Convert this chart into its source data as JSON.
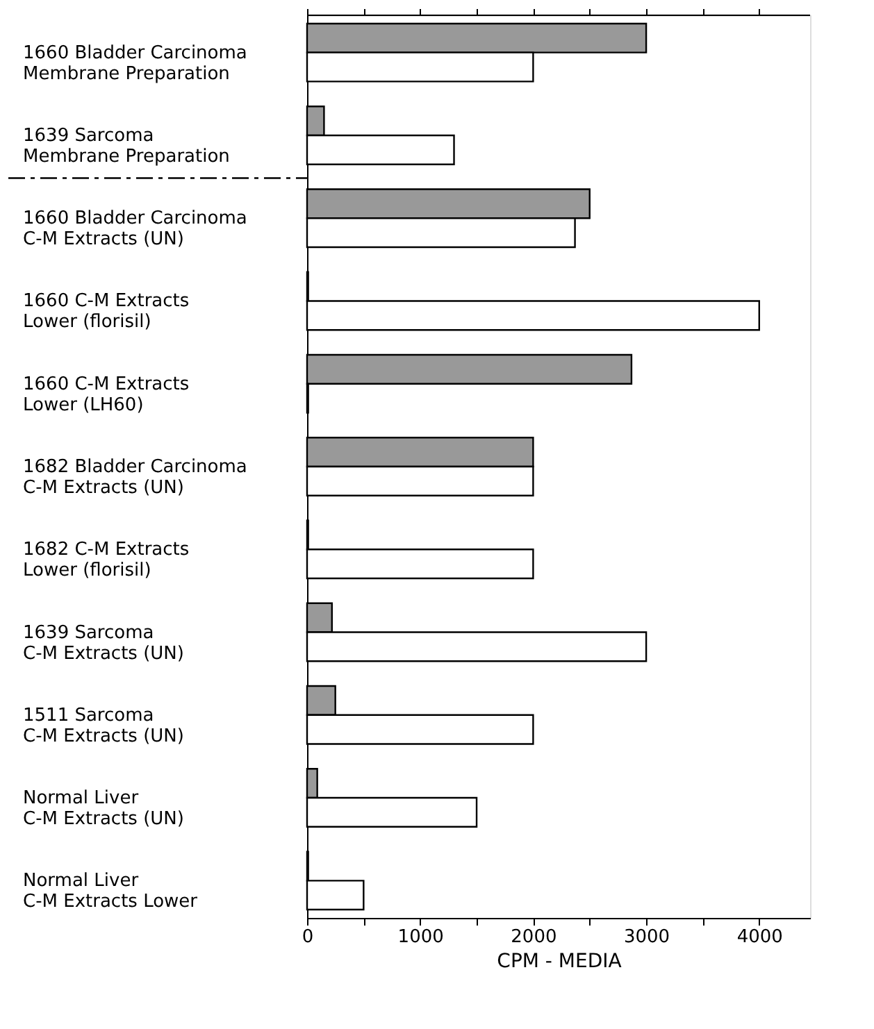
{
  "chart_data": {
    "type": "bar",
    "orientation": "horizontal",
    "categories": [
      "1660 Bladder Carcinoma\nMembrane Preparation",
      "1639 Sarcoma\nMembrane Preparation",
      "1660 Bladder Carcinoma\nC-M Extracts (UN)",
      "1660 C-M Extracts\nLower (florisil)",
      "1660 C-M Extracts\nLower (LH60)",
      "1682 Bladder Carcinoma\nC-M Extracts (UN)",
      "1682 C-M Extracts\nLower (florisil)",
      "1639 Sarcoma\nC-M Extracts (UN)",
      "1511 Sarcoma\nC-M Extracts (UN)",
      "Normal Liver\nC-M Extracts (UN)",
      "Normal Liver\nC-M Extracts Lower"
    ],
    "series": [
      {
        "color": "#999999",
        "values": [
          3000,
          150,
          2500,
          10,
          2870,
          2000,
          10,
          220,
          250,
          90,
          10
        ]
      },
      {
        "color": "#ffffff",
        "values": [
          2000,
          1300,
          2370,
          4000,
          10,
          2000,
          2000,
          3000,
          2000,
          1500,
          500
        ]
      }
    ],
    "xlabel": "CPM - MEDIA",
    "xlim": [
      0,
      4450
    ],
    "xticks": [
      0,
      1000,
      2000,
      3000,
      4000
    ],
    "grid": false
  }
}
